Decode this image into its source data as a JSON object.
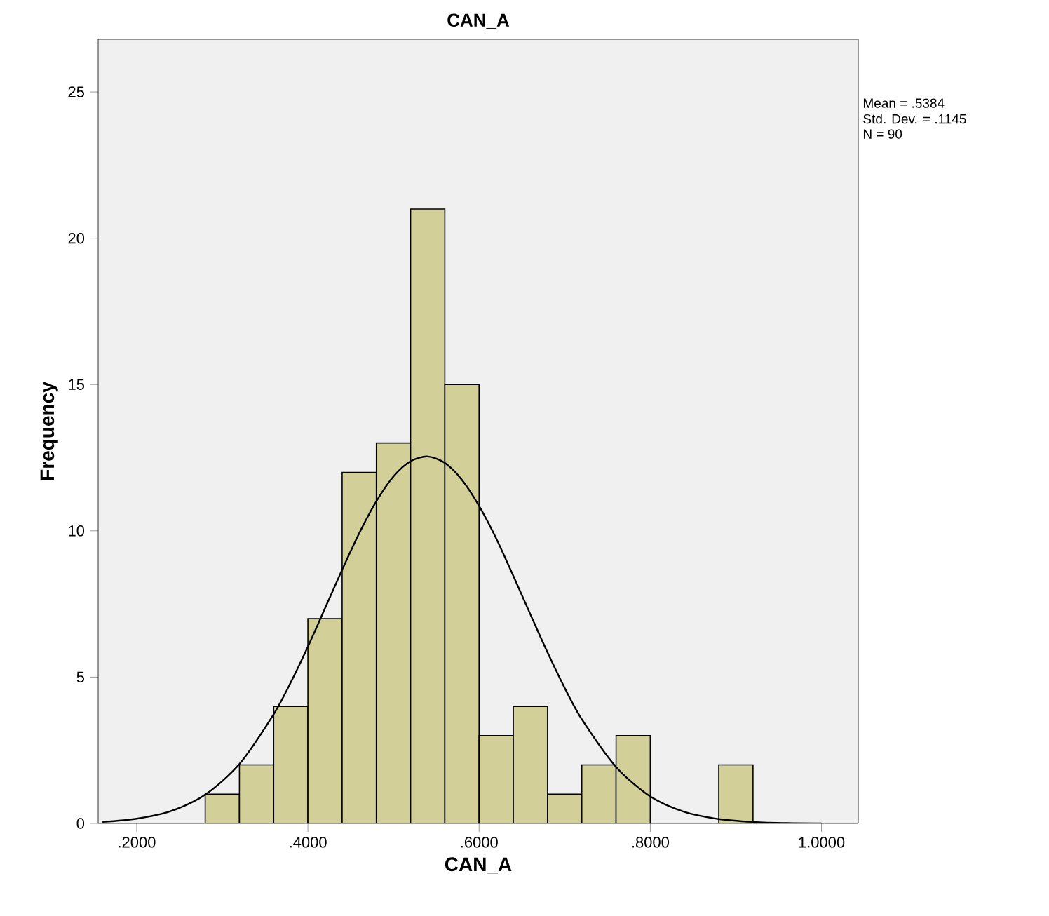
{
  "chart_data": {
    "type": "histogram",
    "title": "CAN_A",
    "xlabel": "CAN_A",
    "ylabel": "Frequency",
    "annotations": [
      "Mean = .5384",
      "Std. Dev. = .1145",
      "N = 90"
    ],
    "series": [
      {
        "color": "#d3cf98",
        "bins": [
          0.28,
          0.32,
          0.36,
          0.4,
          0.44,
          0.48,
          0.52,
          0.56,
          0.6,
          0.64,
          0.68,
          0.72,
          0.76,
          0.8,
          0.84,
          0.88,
          0.92
        ],
        "values": [
          1,
          2,
          4,
          7,
          12,
          13,
          21,
          15,
          3,
          4,
          1,
          2,
          3,
          0,
          0,
          2
        ]
      },
      {
        "type": "line",
        "color": "#000000",
        "x": [
          0.16,
          0.2,
          0.24,
          0.28,
          0.32,
          0.36,
          0.38,
          0.4,
          0.42,
          0.44,
          0.46,
          0.48,
          0.5,
          0.52,
          0.54,
          0.56,
          0.58,
          0.6,
          0.62,
          0.64,
          0.66,
          0.68,
          0.7,
          0.72,
          0.76,
          0.8,
          0.84,
          0.88,
          0.92,
          0.96,
          1.0
        ],
        "values": [
          0.05,
          0.16,
          0.42,
          0.98,
          2.03,
          3.73,
          4.82,
          6.04,
          7.35,
          8.67,
          9.92,
          11.01,
          11.86,
          12.38,
          12.54,
          12.32,
          11.74,
          10.85,
          9.74,
          8.46,
          7.14,
          5.84,
          4.63,
          3.56,
          1.93,
          0.92,
          0.39,
          0.15,
          0.05,
          0.01,
          0.0
        ]
      }
    ],
    "xlim": [
      0.155,
      1.043
    ],
    "ylim": [
      0,
      26.8
    ],
    "xticks": [
      {
        "value": 0.2,
        "label": ".2000"
      },
      {
        "value": 0.4,
        "label": ".4000"
      },
      {
        "value": 0.6,
        "label": ".6000"
      },
      {
        "value": 0.8,
        "label": ".8000"
      },
      {
        "value": 1.0,
        "label": "1.0000"
      }
    ],
    "yticks": [
      0,
      5,
      10,
      15,
      20,
      25
    ],
    "grid": false
  }
}
